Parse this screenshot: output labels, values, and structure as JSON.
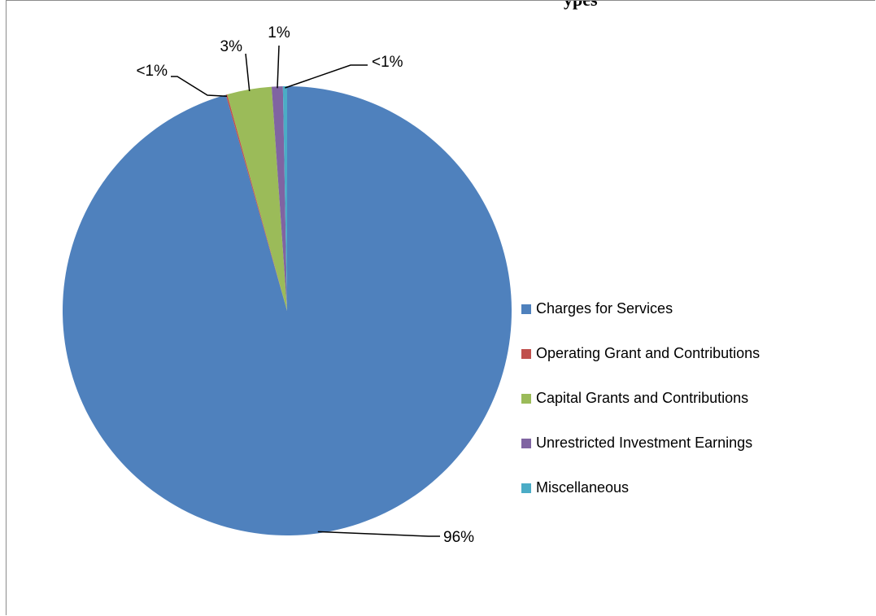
{
  "page": {
    "title_fragment": "ypes"
  },
  "chart_data": {
    "type": "pie",
    "title": "",
    "start_angle_deg": 0,
    "direction": "clockwise",
    "legend_position": "right",
    "slices": [
      {
        "name": "Charges for Services",
        "value": 95.6,
        "label": "96%",
        "color": "#4f81bd"
      },
      {
        "name": "Operating Grant and Contributions",
        "value": 0.1,
        "label": "<1%",
        "color": "#c0504d"
      },
      {
        "name": "Capital Grants and Contributions",
        "value": 3.2,
        "label": "3%",
        "color": "#9bbb59"
      },
      {
        "name": "Unrestricted Investment Earnings",
        "value": 0.8,
        "label": "1%",
        "color": "#8064a2"
      },
      {
        "name": "Miscellaneous",
        "value": 0.3,
        "label": "<1%",
        "color": "#4bacc6"
      }
    ]
  }
}
